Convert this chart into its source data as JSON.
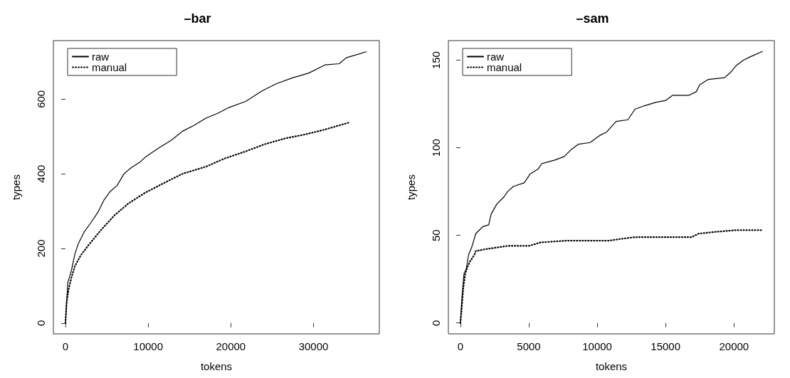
{
  "chart_data": [
    {
      "type": "line",
      "title": "–bar",
      "xlabel": "tokens",
      "ylabel": "types",
      "legend": "top left",
      "grid": false,
      "marker": "none",
      "xlim": [
        -1460,
        37960
      ],
      "ylim": [
        -29,
        757
      ],
      "xticks": [
        0,
        10000,
        20000,
        30000
      ],
      "yticks": [
        0,
        200,
        400,
        600
      ],
      "series": [
        {
          "name": "raw",
          "color": "#000000",
          "line_style": "solid",
          "x": [
            0,
            280,
            710,
            1130,
            1560,
            2260,
            3110,
            3960,
            4670,
            5380,
            6230,
            7080,
            7930,
            9060,
            9620,
            11320,
            12740,
            14150,
            15570,
            16980,
            18400,
            19810,
            21790,
            23770,
            25470,
            27450,
            29430,
            31420,
            33110,
            33960,
            36370
          ],
          "values": [
            0,
            108,
            140,
            184,
            213,
            244,
            270,
            298,
            330,
            352,
            368,
            400,
            416,
            432,
            444,
            470,
            489,
            514,
            530,
            549,
            562,
            578,
            594,
            622,
            641,
            657,
            670,
            692,
            695,
            711,
            727
          ]
        },
        {
          "name": "manual",
          "color": "#000000",
          "line_style": "dotted",
          "x": [
            0,
            140,
            430,
            710,
            1130,
            1840,
            2830,
            4250,
            5940,
            7640,
            9620,
            11890,
            14150,
            16980,
            19250,
            21790,
            24060,
            26600,
            28870,
            31130,
            34250
          ],
          "values": [
            0,
            57,
            95,
            121,
            152,
            181,
            210,
            248,
            289,
            321,
            349,
            375,
            400,
            419,
            441,
            460,
            479,
            495,
            505,
            517,
            537
          ]
        }
      ]
    },
    {
      "type": "line",
      "title": "–sam",
      "xlabel": "tokens",
      "ylabel": "types",
      "legend": "top left",
      "grid": false,
      "marker": "none",
      "xlim": [
        -880,
        22950
      ],
      "ylim": [
        -6.2,
        161.2
      ],
      "xticks": [
        0,
        5000,
        10000,
        15000,
        20000
      ],
      "yticks": [
        0,
        50,
        100,
        150
      ],
      "series": [
        {
          "name": "raw",
          "color": "#000000",
          "line_style": "solid",
          "x": [
            0,
            90,
            170,
            260,
            430,
            600,
            860,
            1120,
            1380,
            1640,
            2070,
            2240,
            2670,
            3190,
            3450,
            3880,
            4660,
            5090,
            5690,
            5950,
            6900,
            7590,
            8100,
            8620,
            9480,
            10170,
            10690,
            11380,
            12240,
            12760,
            13450,
            14310,
            15000,
            15520,
            16720,
            17240,
            17500,
            18100,
            19310,
            19740,
            20170,
            20690,
            21210,
            22070
          ],
          "values": [
            0,
            12,
            20,
            28,
            31,
            39,
            44,
            51,
            53,
            55,
            56,
            62,
            68,
            72,
            75,
            78,
            80,
            85,
            88,
            91,
            93,
            95,
            99,
            102,
            103,
            107,
            109,
            115,
            116,
            122,
            124,
            126,
            127,
            130,
            130,
            132,
            136,
            139,
            140,
            143,
            147,
            150,
            152,
            155
          ]
        },
        {
          "name": "manual",
          "color": "#000000",
          "line_style": "dotted",
          "x": [
            0,
            90,
            210,
            350,
            520,
            690,
            1030,
            1120,
            1720,
            2590,
            3450,
            5000,
            5860,
            7760,
            10860,
            11720,
            12760,
            16900,
            17410,
            18620,
            20170,
            22070
          ],
          "values": [
            0,
            8,
            20,
            28,
            32,
            35,
            39,
            41,
            42,
            43,
            44,
            44,
            46,
            47,
            47,
            48,
            49,
            49,
            51,
            52,
            53,
            53
          ]
        }
      ]
    }
  ]
}
